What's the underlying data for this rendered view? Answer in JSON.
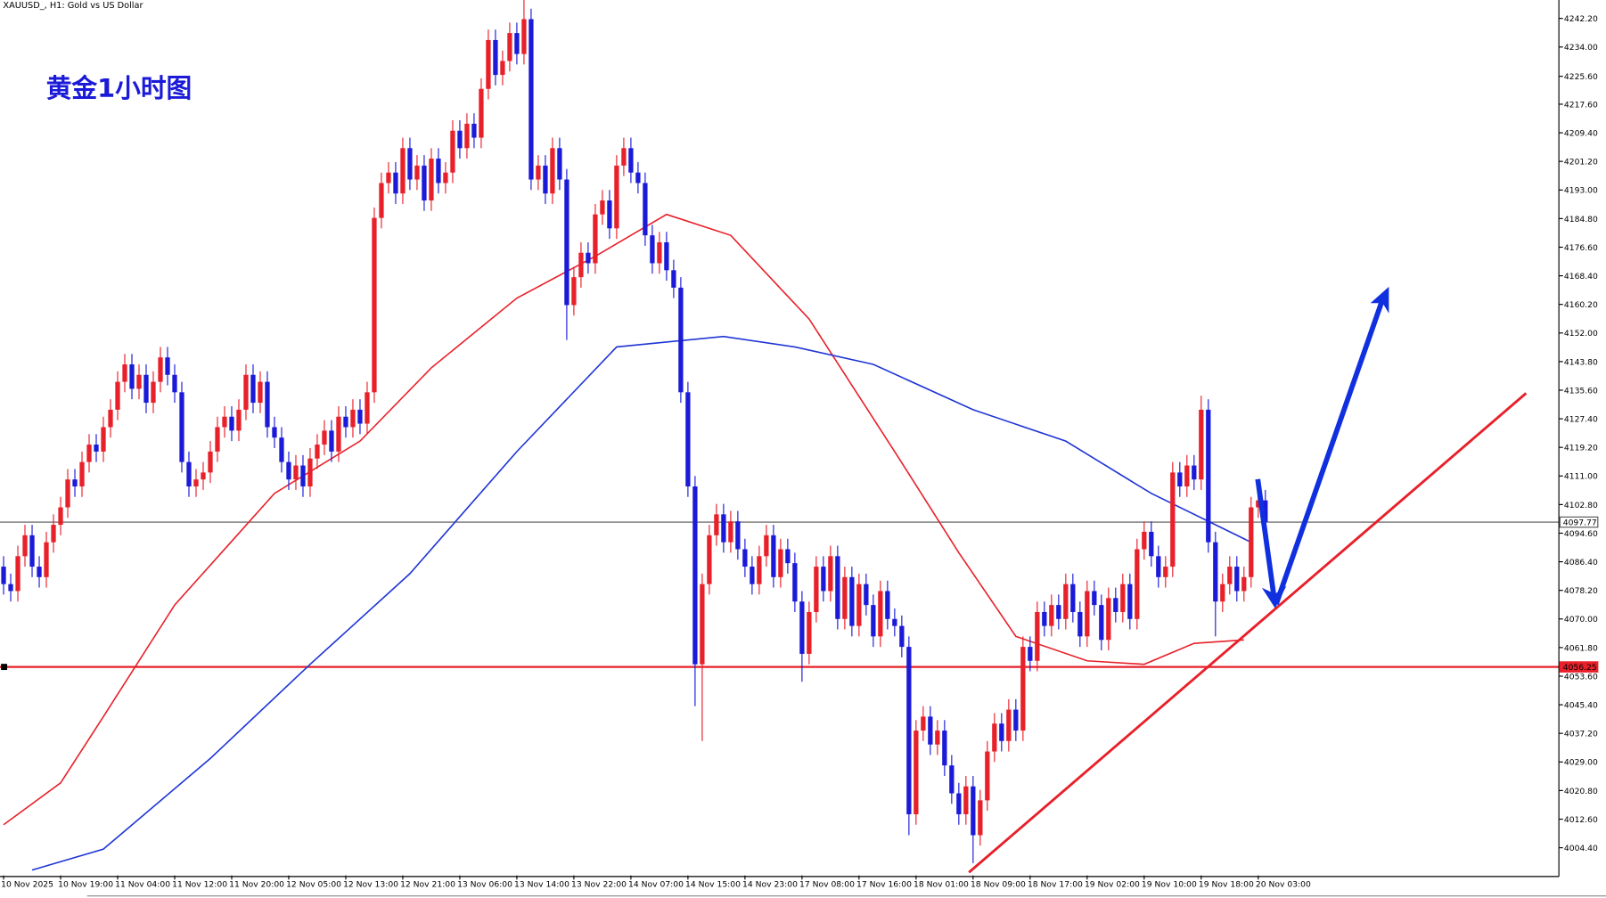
{
  "chart_data": {
    "type": "candlestick",
    "header": "XAUUSD_, H1:  Gold vs US Dollar",
    "title": "黄金1小时图",
    "categories": [
      "10 Nov 2025",
      null,
      null,
      null,
      null,
      null,
      null,
      null,
      "10 Nov 19:00",
      null,
      null,
      null,
      null,
      null,
      null,
      null,
      "11 Nov 04:00",
      null,
      null,
      null,
      null,
      null,
      null,
      null,
      "11 Nov 12:00",
      null,
      null,
      null,
      null,
      null,
      null,
      null,
      "11 Nov 20:00",
      null,
      null,
      null,
      null,
      null,
      null,
      null,
      "12 Nov 05:00",
      null,
      null,
      null,
      null,
      null,
      null,
      null,
      "12 Nov 13:00",
      null,
      null,
      null,
      null,
      null,
      null,
      null,
      "12 Nov 21:00",
      null,
      null,
      null,
      null,
      null,
      null,
      null,
      "13 Nov 06:00",
      null,
      null,
      null,
      null,
      null,
      null,
      null,
      "13 Nov 14:00",
      null,
      null,
      null,
      null,
      null,
      null,
      null,
      "13 Nov 22:00",
      null,
      null,
      null,
      null,
      null,
      null,
      null,
      "14 Nov 07:00",
      null,
      null,
      null,
      null,
      null,
      null,
      null,
      "14 Nov 15:00",
      null,
      null,
      null,
      null,
      null,
      null,
      null,
      "14 Nov 23:00",
      null,
      null,
      null,
      null,
      null,
      null,
      null,
      "17 Nov 08:00",
      null,
      null,
      null,
      null,
      null,
      null,
      null,
      "17 Nov 16:00",
      null,
      null,
      null,
      null,
      null,
      null,
      null,
      "18 Nov 01:00",
      null,
      null,
      null,
      null,
      null,
      null,
      null,
      "18 Nov 09:00",
      null,
      null,
      null,
      null,
      null,
      null,
      null,
      "18 Nov 17:00",
      null,
      null,
      null,
      null,
      null,
      null,
      null,
      "19 Nov 02:00",
      null,
      null,
      null,
      null,
      null,
      null,
      null,
      "19 Nov 10:00",
      null,
      null,
      null,
      null,
      null,
      null,
      null,
      "19 Nov 18:00",
      null,
      null,
      null,
      null,
      null,
      null,
      null,
      "20 Nov 03:00",
      null
    ],
    "open": [
      4085,
      4080,
      4078,
      4088,
      4094,
      4085,
      4082,
      4092,
      4097,
      4102,
      4110,
      4108,
      4115,
      4120,
      4118,
      4125,
      4130,
      4138,
      4143,
      4136,
      4140,
      4132,
      4138,
      4145,
      4140,
      4135,
      4115,
      4108,
      4110,
      4112,
      4118,
      4125,
      4128,
      4124,
      4130,
      4140,
      4132,
      4138,
      4125,
      4122,
      4115,
      4110,
      4114,
      4108,
      4116,
      4120,
      4124,
      4118,
      4128,
      4125,
      4130,
      4126,
      4135,
      4185,
      4195,
      4198,
      4192,
      4205,
      4196,
      4200,
      4190,
      4202,
      4195,
      4198,
      4210,
      4205,
      4212,
      4208,
      4222,
      4236,
      4226,
      4230,
      4238,
      4232,
      4242,
      4196,
      4200,
      4192,
      4205,
      4196,
      4160,
      4168,
      4175,
      4172,
      4186,
      4190,
      4182,
      4200,
      4205,
      4198,
      4195,
      4180,
      4172,
      4178,
      4170,
      4165,
      4135,
      4108,
      4057,
      4080,
      4094,
      4100,
      4092,
      4098,
      4090,
      4085,
      4080,
      4088,
      4094,
      4082,
      4090,
      4086,
      4075,
      4060,
      4072,
      4085,
      4078,
      4088,
      4070,
      4082,
      4068,
      4080,
      4074,
      4065,
      4078,
      4070,
      4068,
      4062,
      4014,
      4038,
      4042,
      4034,
      4038,
      4028,
      4020,
      4014,
      4022,
      4008,
      4018,
      4032,
      4040,
      4035,
      4044,
      4038,
      4062,
      4058,
      4072,
      4068,
      4074,
      4070,
      4080,
      4072,
      4065,
      4078,
      4074,
      4064,
      4076,
      4072,
      4080,
      4070,
      4090,
      4095,
      4088,
      4082,
      4085,
      4112,
      4108,
      4114,
      4110,
      4130,
      4092,
      4075,
      4080,
      4085,
      4078,
      4082,
      4102,
      4104
    ],
    "high": [
      4088,
      4083,
      4091,
      4097,
      4097,
      4088,
      4095,
      4100,
      4105,
      4113,
      4113,
      4118,
      4123,
      4123,
      4128,
      4133,
      4141,
      4146,
      4146,
      4143,
      4143,
      4141,
      4148,
      4148,
      4143,
      4138,
      4118,
      4113,
      4115,
      4121,
      4128,
      4131,
      4131,
      4133,
      4143,
      4143,
      4141,
      4141,
      4128,
      4125,
      4118,
      4117,
      4117,
      4119,
      4123,
      4127,
      4127,
      4131,
      4131,
      4133,
      4133,
      4138,
      4188,
      4198,
      4201,
      4201,
      4208,
      4208,
      4203,
      4203,
      4205,
      4205,
      4201,
      4213,
      4213,
      4215,
      4215,
      4225,
      4239,
      4239,
      4233,
      4241,
      4241,
      4248,
      4245,
      4203,
      4203,
      4208,
      4208,
      4199,
      4171,
      4178,
      4178,
      4189,
      4193,
      4193,
      4203,
      4208,
      4208,
      4201,
      4198,
      4183,
      4181,
      4181,
      4173,
      4168,
      4138,
      4111,
      4083,
      4097,
      4103,
      4103,
      4101,
      4101,
      4093,
      4088,
      4091,
      4097,
      4097,
      4093,
      4093,
      4089,
      4078,
      4075,
      4088,
      4088,
      4091,
      4091,
      4085,
      4085,
      4083,
      4083,
      4077,
      4081,
      4081,
      4073,
      4071,
      4065,
      4041,
      4045,
      4045,
      4041,
      4041,
      4031,
      4023,
      4025,
      4025,
      4021,
      4035,
      4043,
      4043,
      4047,
      4047,
      4065,
      4065,
      4075,
      4075,
      4077,
      4077,
      4083,
      4083,
      4075,
      4081,
      4081,
      4077,
      4079,
      4079,
      4083,
      4083,
      4093,
      4098,
      4098,
      4091,
      4088,
      4115,
      4115,
      4117,
      4117,
      4134,
      4133,
      4095,
      4083,
      4088,
      4088,
      4085,
      4105,
      4110,
      4107
    ],
    "low": [
      4077,
      4075,
      4075,
      4085,
      4082,
      4079,
      4079,
      4089,
      4094,
      4099,
      4105,
      4105,
      4112,
      4115,
      4115,
      4122,
      4127,
      4135,
      4133,
      4133,
      4129,
      4129,
      4135,
      4137,
      4132,
      4112,
      4105,
      4105,
      4107,
      4109,
      4115,
      4122,
      4121,
      4121,
      4127,
      4129,
      4129,
      4122,
      4119,
      4112,
      4107,
      4107,
      4105,
      4105,
      4113,
      4117,
      4115,
      4115,
      4122,
      4122,
      4123,
      4123,
      4132,
      4182,
      4192,
      4189,
      4189,
      4193,
      4193,
      4187,
      4187,
      4192,
      4192,
      4195,
      4202,
      4202,
      4205,
      4205,
      4219,
      4223,
      4223,
      4227,
      4229,
      4229,
      4193,
      4193,
      4189,
      4189,
      4193,
      4150,
      4157,
      4165,
      4169,
      4169,
      4183,
      4179,
      4179,
      4197,
      4195,
      4192,
      4177,
      4169,
      4169,
      4167,
      4162,
      4132,
      4105,
      4045,
      4035,
      4077,
      4091,
      4089,
      4089,
      4087,
      4082,
      4077,
      4077,
      4085,
      4079,
      4079,
      4083,
      4072,
      4052,
      4057,
      4069,
      4075,
      4075,
      4067,
      4067,
      4065,
      4065,
      4071,
      4062,
      4062,
      4067,
      4065,
      4059,
      4008,
      4011,
      4035,
      4031,
      4031,
      4025,
      4017,
      4011,
      4011,
      4000,
      4005,
      4015,
      4029,
      4032,
      4032,
      4035,
      4035,
      4055,
      4055,
      4065,
      4065,
      4067,
      4067,
      4069,
      4062,
      4062,
      4071,
      4061,
      4061,
      4069,
      4069,
      4067,
      4067,
      4087,
      4085,
      4079,
      4079,
      4082,
      4105,
      4105,
      4107,
      4107,
      4089,
      4065,
      4072,
      4077,
      4075,
      4075,
      4079,
      4099,
      4095
    ],
    "close": [
      4080,
      4078,
      4088,
      4094,
      4085,
      4082,
      4092,
      4097,
      4102,
      4110,
      4108,
      4115,
      4120,
      4118,
      4125,
      4130,
      4138,
      4143,
      4136,
      4140,
      4132,
      4138,
      4145,
      4140,
      4135,
      4115,
      4108,
      4110,
      4112,
      4118,
      4125,
      4128,
      4124,
      4130,
      4140,
      4132,
      4138,
      4125,
      4122,
      4115,
      4110,
      4114,
      4108,
      4116,
      4120,
      4124,
      4118,
      4128,
      4125,
      4130,
      4126,
      4135,
      4185,
      4195,
      4198,
      4192,
      4205,
      4196,
      4200,
      4190,
      4202,
      4195,
      4198,
      4210,
      4205,
      4212,
      4208,
      4222,
      4236,
      4226,
      4230,
      4238,
      4232,
      4242,
      4196,
      4200,
      4192,
      4205,
      4196,
      4160,
      4168,
      4175,
      4172,
      4186,
      4190,
      4182,
      4200,
      4205,
      4198,
      4195,
      4180,
      4172,
      4178,
      4170,
      4165,
      4135,
      4108,
      4057,
      4080,
      4094,
      4100,
      4092,
      4098,
      4090,
      4085,
      4080,
      4088,
      4094,
      4082,
      4090,
      4086,
      4075,
      4060,
      4072,
      4085,
      4078,
      4088,
      4070,
      4082,
      4068,
      4080,
      4074,
      4065,
      4078,
      4070,
      4068,
      4062,
      4014,
      4038,
      4042,
      4034,
      4038,
      4028,
      4020,
      4014,
      4022,
      4008,
      4018,
      4032,
      4040,
      4035,
      4044,
      4038,
      4062,
      4058,
      4072,
      4068,
      4074,
      4070,
      4080,
      4072,
      4065,
      4078,
      4074,
      4064,
      4076,
      4072,
      4080,
      4070,
      4090,
      4095,
      4088,
      4082,
      4085,
      4112,
      4108,
      4114,
      4110,
      4130,
      4092,
      4075,
      4080,
      4085,
      4078,
      4082,
      4102,
      4104,
      4097.77
    ],
    "up_color": "#e8202a",
    "down_color": "#1a1ad8",
    "lines": [
      {
        "color": "#e8202a",
        "x": [
          0,
          8,
          14,
          24,
          38,
          50,
          60,
          72,
          83,
          93,
          102,
          113,
          125,
          134,
          142,
          152,
          160,
          167,
          174
        ],
        "values": [
          4011,
          4023,
          4042,
          4074,
          4106,
          4121,
          4142,
          4162,
          4174,
          4186,
          4180,
          4156,
          4118,
          4089,
          4065,
          4058,
          4057,
          4063,
          4064
        ]
      },
      {
        "color": "#1f35d6",
        "x": [
          4,
          14,
          29,
          43,
          57,
          72,
          86,
          101,
          111,
          122,
          136,
          149,
          161,
          175
        ],
        "values": [
          3998,
          4004,
          4030,
          4057,
          4083,
          4118,
          4148,
          4151,
          4148,
          4143,
          4130,
          4121,
          4106,
          4092
        ]
      }
    ],
    "levels": [
      {
        "value": 4097.77,
        "color": "#555555"
      },
      {
        "value": 4056.25,
        "color": "#e8202a"
      }
    ],
    "ylim": [
      3996.45,
      4247.48
    ],
    "yticks": [
      {
        "value": 4242.2,
        "label": "4242.20"
      },
      {
        "value": 4234,
        "label": "4234.00"
      },
      {
        "value": 4225.6,
        "label": "4225.60"
      },
      {
        "value": 4217.6,
        "label": "4217.60"
      },
      {
        "value": 4209.4,
        "label": "4209.40"
      },
      {
        "value": 4201.2,
        "label": "4201.20"
      },
      {
        "value": 4193,
        "label": "4193.00"
      },
      {
        "value": 4184.8,
        "label": "4184.80"
      },
      {
        "value": 4176.6,
        "label": "4176.60"
      },
      {
        "value": 4168.4,
        "label": "4168.40"
      },
      {
        "value": 4160.2,
        "label": "4160.20"
      },
      {
        "value": 4152,
        "label": "4152.00"
      },
      {
        "value": 4143.8,
        "label": "4143.80"
      },
      {
        "value": 4135.6,
        "label": "4135.60"
      },
      {
        "value": 4127.4,
        "label": "4127.40"
      },
      {
        "value": 4119.2,
        "label": "4119.20"
      },
      {
        "value": 4111,
        "label": "4111.00"
      },
      {
        "value": 4102.8,
        "label": "4102.80"
      },
      {
        "value": 4094.6,
        "label": "4094.60"
      },
      {
        "value": 4086.4,
        "label": "4086.40"
      },
      {
        "value": 4078.2,
        "label": "4078.20"
      },
      {
        "value": 4070,
        "label": "4070.00"
      },
      {
        "value": 4061.8,
        "label": "4061.80"
      },
      {
        "value": 4053.6,
        "label": "4053.60"
      },
      {
        "value": 4045.4,
        "label": "4045.40"
      },
      {
        "value": 4037.2,
        "label": "4037.20"
      },
      {
        "value": 4029,
        "label": "4029.00"
      },
      {
        "value": 4020.8,
        "label": "4020.80"
      },
      {
        "value": 4012.6,
        "label": "4012.60"
      },
      {
        "value": 4004.4,
        "label": "4004.40"
      }
    ]
  }
}
